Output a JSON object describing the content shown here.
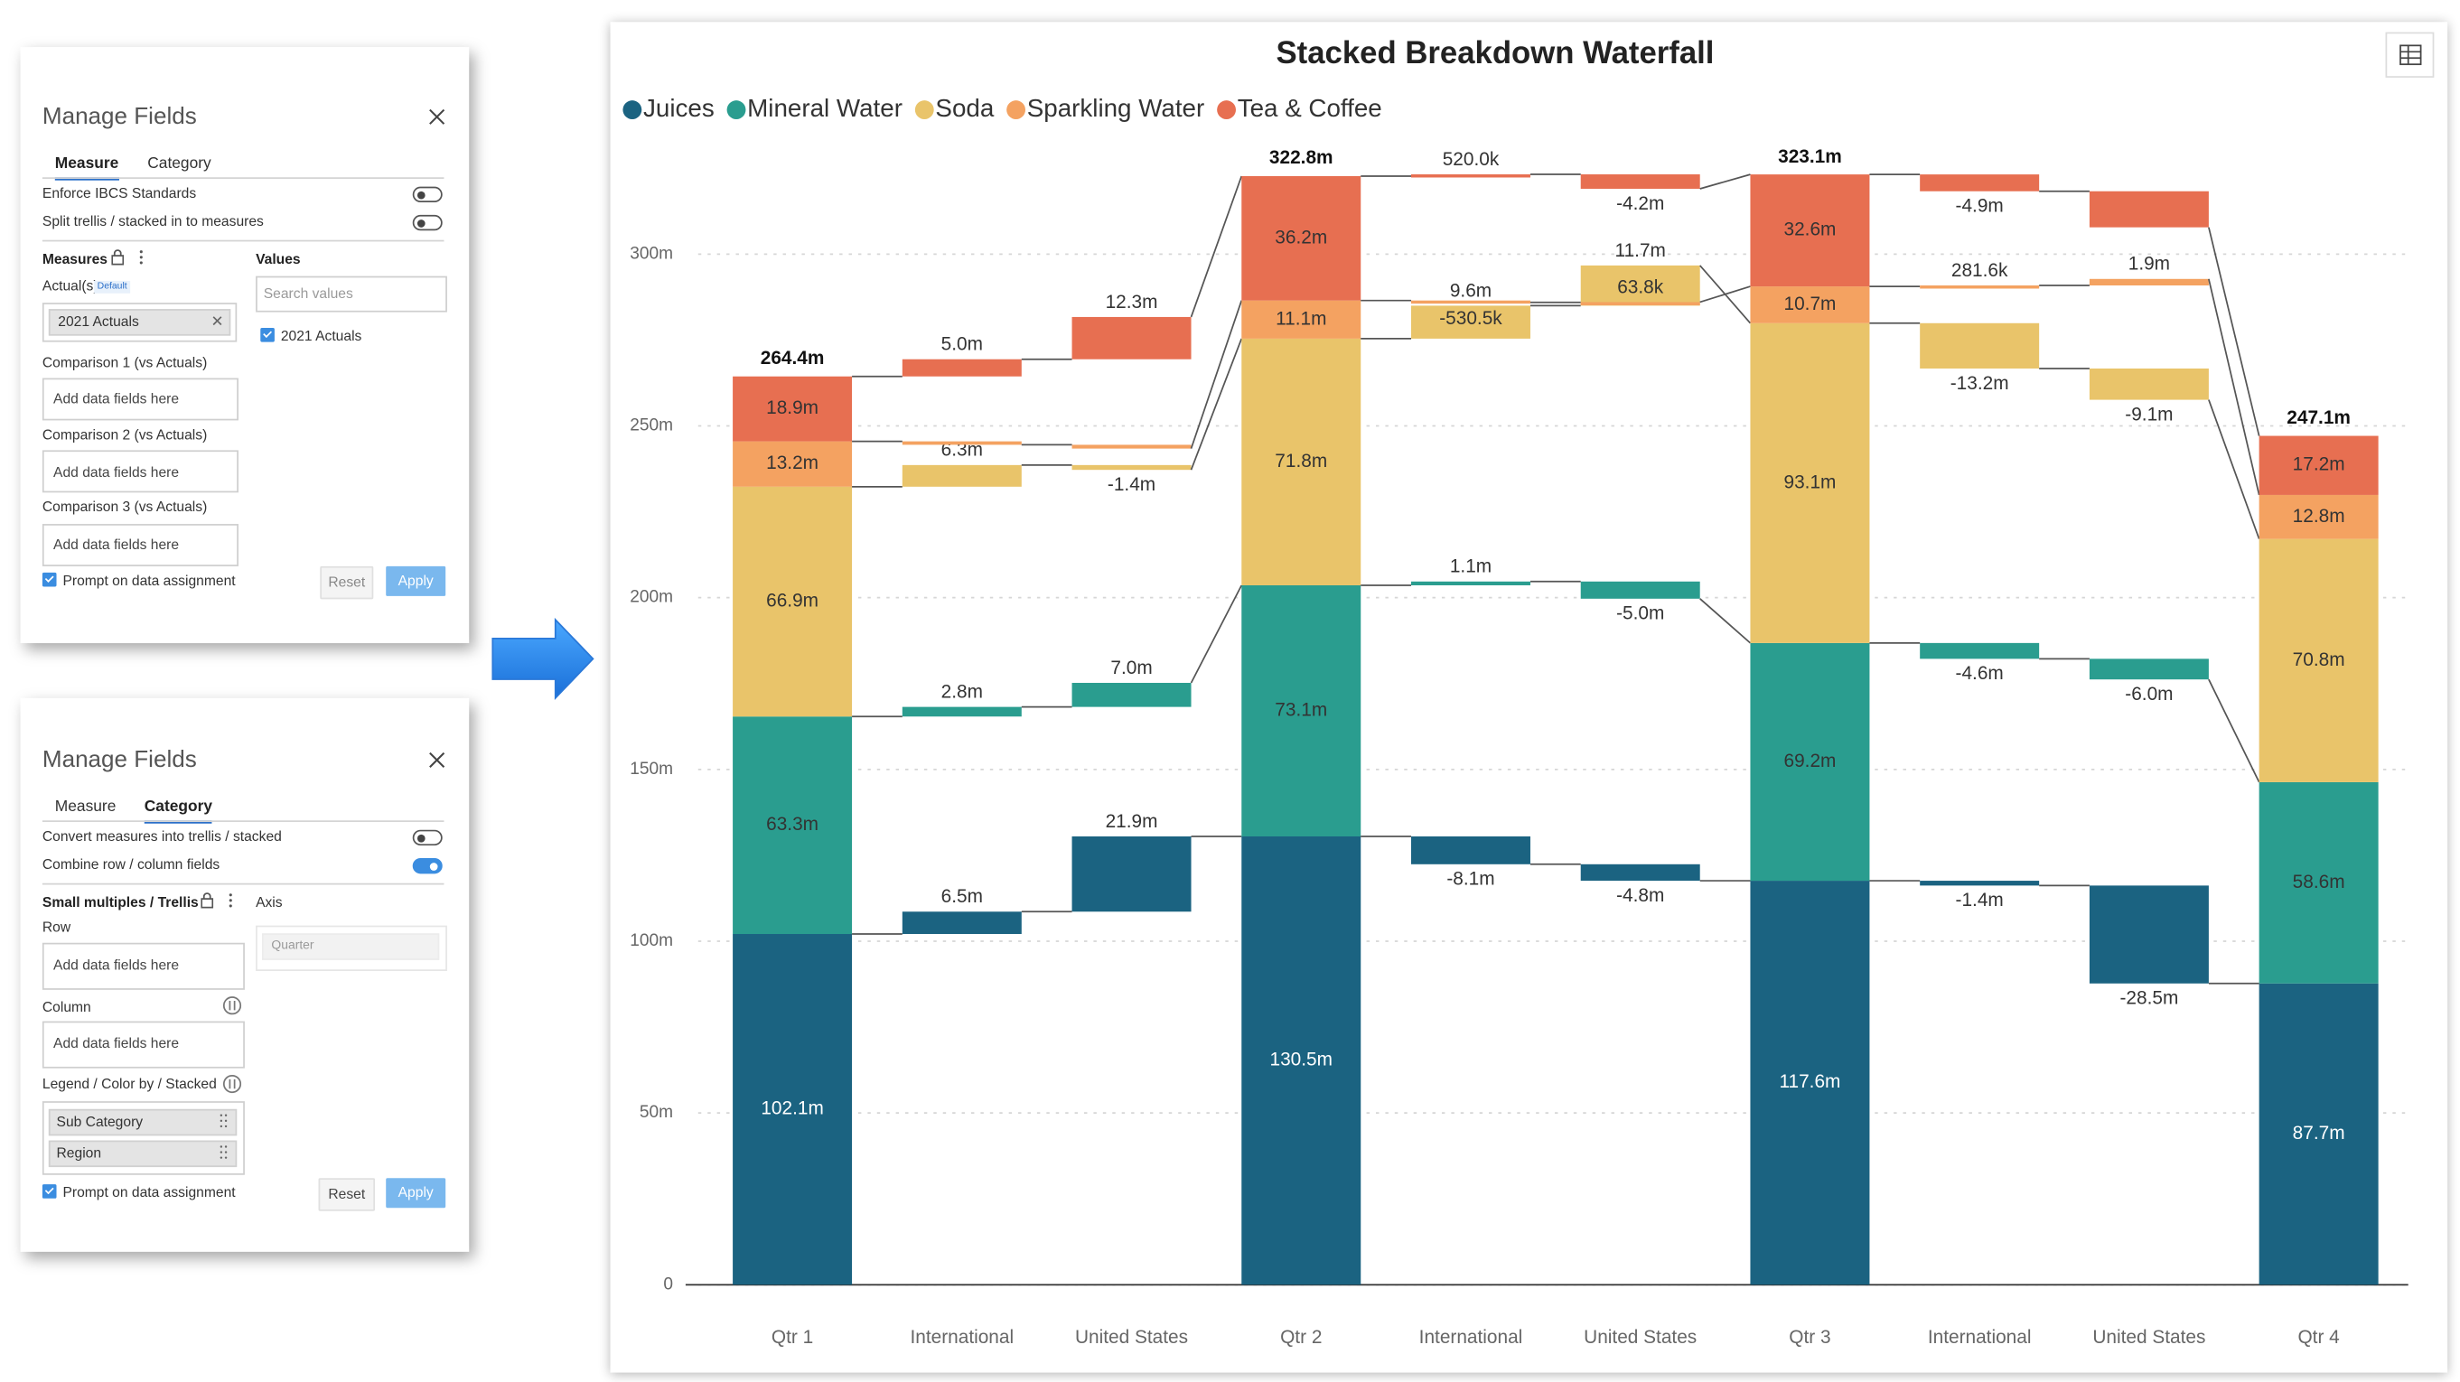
{
  "panels": [
    {
      "title": "Manage Fields",
      "tabs": [
        "Measure",
        "Category"
      ],
      "active_tab": 0,
      "toggles": [
        {
          "label": "Enforce IBCS Standards",
          "on": false
        },
        {
          "label": "Split trellis / stacked in to measures",
          "on": false
        }
      ],
      "measures_heading": "Measures",
      "actuals_label": "Actual(s)",
      "actuals_badge": "Default",
      "actuals_field": "2021 Actuals",
      "comparisons": [
        {
          "label": "Comparison 1 (vs Actuals)",
          "placeholder": "Add data fields here"
        },
        {
          "label": "Comparison 2 (vs Actuals)",
          "placeholder": "Add data fields here"
        },
        {
          "label": "Comparison 3 (vs Actuals)",
          "placeholder": "Add data fields here"
        }
      ],
      "values_heading": "Values",
      "search_placeholder": "Search values",
      "value_items": [
        {
          "label": "2021 Actuals",
          "checked": true
        }
      ],
      "prompt": {
        "label": "Prompt on data assignment",
        "checked": true
      },
      "buttons": [
        "Reset",
        "Apply"
      ]
    },
    {
      "title": "Manage Fields",
      "tabs": [
        "Measure",
        "Category"
      ],
      "active_tab": 1,
      "toggles": [
        {
          "label": "Convert measures into trellis / stacked",
          "on": false
        },
        {
          "label": "Combine row / column fields",
          "on": true
        }
      ],
      "trellis_heading": "Small multiples / Trellis",
      "axis_heading": "Axis",
      "axis_placeholder": "Quarter",
      "row": {
        "label": "Row",
        "placeholder": "Add data fields here"
      },
      "column": {
        "label": "Column",
        "placeholder": "Add data fields here"
      },
      "legend": {
        "label": "Legend / Color by / Stacked",
        "fields": [
          "Sub Category",
          "Region"
        ]
      },
      "prompt": {
        "label": "Prompt on data assignment",
        "checked": true
      },
      "buttons": [
        "Reset",
        "Apply"
      ]
    }
  ],
  "chart_data": {
    "type": "stacked_waterfall",
    "title": "Stacked Breakdown Waterfall",
    "legend": "top-left",
    "grid": true,
    "categories": [
      "Qtr 1",
      "International",
      "United States",
      "Qtr 2",
      "International",
      "United States",
      "Qtr 3",
      "International",
      "United States",
      "Qtr 4"
    ],
    "total_values": [
      264.4,
      null,
      null,
      322.8,
      null,
      null,
      323.1,
      null,
      null,
      247.1
    ],
    "total_labels": [
      "264.4m",
      null,
      null,
      "322.8m",
      null,
      null,
      "323.1m",
      null,
      null,
      "247.1m"
    ],
    "ylim": [
      0,
      330
    ],
    "yticks": [
      0,
      {
        "value": 50,
        "label": "50m"
      },
      {
        "value": 100,
        "label": "100m"
      },
      {
        "value": 150,
        "label": "150m"
      },
      {
        "value": 200,
        "label": "200m"
      },
      {
        "value": 250,
        "label": "250m"
      },
      {
        "value": 300,
        "label": "300m"
      }
    ],
    "series": [
      {
        "name": "Juices",
        "color": "#1b6381",
        "values": [
          102.1,
          6.5,
          21.9,
          130.5,
          -8.1,
          -4.8,
          117.6,
          -1.4,
          -28.5,
          87.7
        ],
        "value_labels": [
          "102.1m",
          "6.5m",
          "21.9m",
          "130.5m",
          "-8.1m",
          "-4.8m",
          "117.6m",
          "-1.4m",
          "-28.5m",
          "87.7m"
        ]
      },
      {
        "name": "Mineral Water",
        "color": "#2a9d8f",
        "values": [
          63.3,
          2.8,
          7.0,
          73.1,
          1.1,
          -5.0,
          69.2,
          -4.6,
          -6.0,
          58.6
        ],
        "value_labels": [
          "63.3m",
          "2.8m",
          "7.0m",
          "73.1m",
          "1.1m",
          "-5.0m",
          "69.2m",
          "-4.6m",
          "-6.0m",
          "58.6m"
        ]
      },
      {
        "name": "Soda",
        "color": "#e9c46a",
        "values": [
          66.9,
          6.3,
          -1.4,
          71.8,
          9.6,
          11.7,
          93.1,
          -13.2,
          -9.1,
          70.8
        ],
        "value_labels": [
          "66.9m",
          "6.3m",
          "-1.4m",
          "71.8m",
          "9.6m",
          "11.7m",
          "93.1m",
          "-13.2m",
          "-9.1m",
          "70.8m"
        ]
      },
      {
        "name": "Sparkling Water",
        "color": "#f4a261",
        "values": [
          13.2,
          -1.0,
          -1.1,
          11.1,
          -0.5305,
          0.0638,
          10.7,
          0.2816,
          1.9,
          12.8
        ],
        "value_labels": [
          "13.2m",
          null,
          null,
          "11.1m",
          "-530.5k",
          "63.8k",
          "10.7m",
          "281.6k",
          "1.9m",
          "12.8m"
        ]
      },
      {
        "name": "Tea & Coffee",
        "color": "#e76f51",
        "values": [
          18.9,
          5.0,
          12.3,
          36.2,
          0.52,
          -4.2,
          32.6,
          -4.9,
          -10.5,
          17.2
        ],
        "value_labels": [
          "18.9m",
          "5.0m",
          "12.3m",
          "36.2m",
          "520.0k",
          "-4.2m",
          "32.6m",
          "-4.9m",
          null,
          "17.2m"
        ]
      }
    ]
  }
}
